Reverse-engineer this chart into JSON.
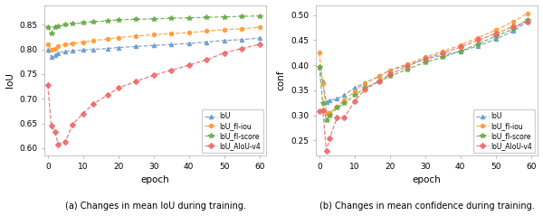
{
  "iou": {
    "epochs": [
      0,
      1,
      2,
      3,
      5,
      7,
      10,
      13,
      17,
      20,
      25,
      30,
      35,
      40,
      45,
      50,
      55,
      60
    ],
    "IoU": [
      0.8,
      0.785,
      0.788,
      0.793,
      0.796,
      0.797,
      0.799,
      0.8,
      0.802,
      0.804,
      0.806,
      0.808,
      0.81,
      0.812,
      0.815,
      0.818,
      0.82,
      0.823
    ],
    "IoU_fl_iou": [
      0.81,
      0.8,
      0.802,
      0.806,
      0.81,
      0.812,
      0.815,
      0.818,
      0.821,
      0.824,
      0.827,
      0.83,
      0.832,
      0.834,
      0.837,
      0.84,
      0.842,
      0.845
    ],
    "IoU_fl_score": [
      0.845,
      0.833,
      0.845,
      0.847,
      0.85,
      0.852,
      0.854,
      0.856,
      0.858,
      0.86,
      0.861,
      0.862,
      0.863,
      0.864,
      0.865,
      0.866,
      0.867,
      0.868
    ],
    "IoU_AIoU_v4": [
      0.728,
      0.645,
      0.633,
      0.608,
      0.613,
      0.648,
      0.67,
      0.69,
      0.708,
      0.722,
      0.735,
      0.748,
      0.758,
      0.768,
      0.779,
      0.793,
      0.802,
      0.81
    ],
    "ylabel": "IoU",
    "xlabel": "epoch",
    "ylim": [
      0.585,
      0.89
    ],
    "yticks": [
      0.6,
      0.65,
      0.7,
      0.75,
      0.8,
      0.85
    ],
    "title": "(a) Changes in mean IoU during training."
  },
  "conf": {
    "epochs": [
      0,
      1,
      2,
      3,
      5,
      7,
      10,
      13,
      17,
      20,
      25,
      30,
      35,
      40,
      45,
      50,
      55,
      59
    ],
    "IoU": [
      0.397,
      0.367,
      0.326,
      0.33,
      0.333,
      0.34,
      0.355,
      0.365,
      0.378,
      0.39,
      0.4,
      0.412,
      0.42,
      0.428,
      0.438,
      0.452,
      0.468,
      0.487
    ],
    "IoU_fl_iou": [
      0.425,
      0.365,
      0.305,
      0.305,
      0.318,
      0.33,
      0.348,
      0.365,
      0.378,
      0.39,
      0.403,
      0.416,
      0.428,
      0.44,
      0.455,
      0.47,
      0.487,
      0.503
    ],
    "IoU_fl_score": [
      0.397,
      0.325,
      0.29,
      0.3,
      0.315,
      0.324,
      0.34,
      0.355,
      0.368,
      0.378,
      0.392,
      0.406,
      0.416,
      0.428,
      0.442,
      0.458,
      0.472,
      0.491
    ],
    "IoU_AIoU_v4": [
      0.308,
      0.31,
      0.23,
      0.255,
      0.295,
      0.295,
      0.328,
      0.352,
      0.368,
      0.382,
      0.398,
      0.413,
      0.424,
      0.436,
      0.45,
      0.463,
      0.477,
      0.487
    ],
    "ylabel": "conf",
    "xlabel": "epoch",
    "ylim": [
      0.22,
      0.52
    ],
    "yticks": [
      0.25,
      0.3,
      0.35,
      0.4,
      0.45,
      0.5
    ],
    "title": "(b) Changes in mean confidence during training."
  },
  "colors": {
    "IoU": "#6699CC",
    "IoU_fl_iou": "#FF9933",
    "IoU_fl_score": "#66AA44",
    "IoU_AIoU_v4": "#EE6666"
  },
  "legend_labels": [
    "IoU",
    "IoU_fl-iou",
    "IoU_fl-score",
    "IoU_AIoU-v4"
  ],
  "series_keys": [
    "IoU",
    "IoU_fl_iou",
    "IoU_fl_score",
    "IoU_AIoU_v4"
  ],
  "markers": {
    "IoU": "^",
    "IoU_fl_iou": "o",
    "IoU_fl_score": "*",
    "IoU_AIoU_v4": "D"
  }
}
